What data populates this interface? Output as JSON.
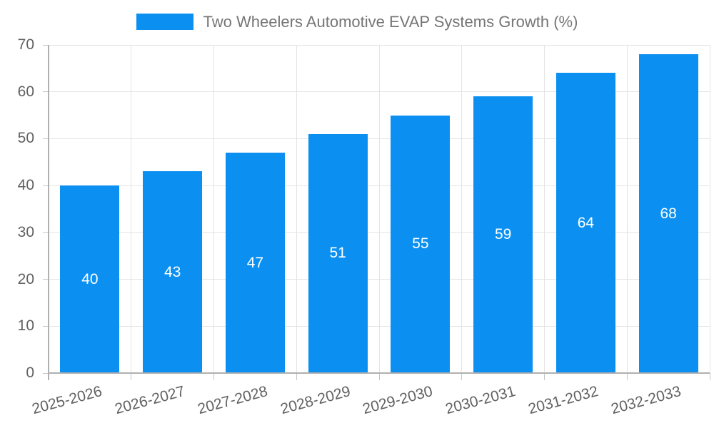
{
  "legend": {
    "series_label": "Two Wheelers Automotive EVAP Systems Growth (%)"
  },
  "chart_data": {
    "type": "bar",
    "title": "Two Wheelers Automotive EVAP Systems Growth (%)",
    "categories": [
      "2025-2026",
      "2026-2027",
      "2027-2028",
      "2028-2029",
      "2029-2030",
      "2030-2031",
      "2031-2032",
      "2032-2033"
    ],
    "values": [
      40,
      43,
      47,
      51,
      55,
      59,
      64,
      68
    ],
    "xlabel": "",
    "ylabel": "",
    "ylim": [
      0,
      70
    ],
    "yticks": [
      0,
      10,
      20,
      30,
      40,
      50,
      60,
      70
    ],
    "grid": "on",
    "legend_position": "top-center",
    "bar_color": "#0b90f1",
    "value_label_color": "#ffffff"
  },
  "colors": {
    "grid": "#e4e4e4",
    "axis": "#b0b0b0",
    "tick": "#c6c6c6",
    "tick_label": "#616161",
    "title": "#757575",
    "background": "#ffffff"
  }
}
